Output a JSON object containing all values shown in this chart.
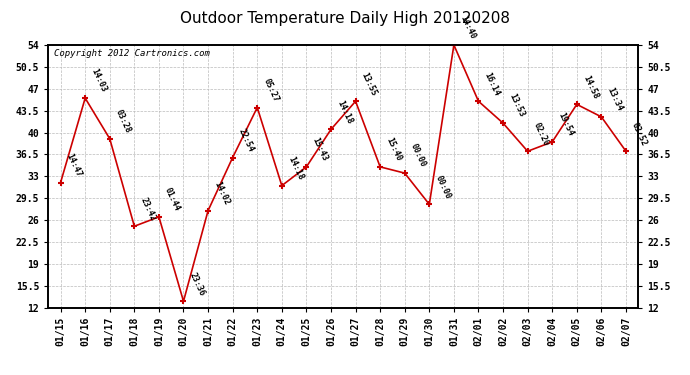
{
  "title": "Outdoor Temperature Daily High 20120208",
  "copyright": "Copyright 2012 Cartronics.com",
  "dates": [
    "01/15",
    "01/16",
    "01/17",
    "01/18",
    "01/19",
    "01/20",
    "01/21",
    "01/22",
    "01/23",
    "01/24",
    "01/25",
    "01/26",
    "01/27",
    "01/28",
    "01/29",
    "01/30",
    "01/31",
    "02/01",
    "02/02",
    "02/03",
    "02/04",
    "02/05",
    "02/06",
    "02/07"
  ],
  "values": [
    32.0,
    45.5,
    39.0,
    25.0,
    26.5,
    13.0,
    27.5,
    36.0,
    44.0,
    31.5,
    34.5,
    40.5,
    45.0,
    34.5,
    33.5,
    28.5,
    54.0,
    45.0,
    41.5,
    37.0,
    38.5,
    44.5,
    42.5,
    37.0
  ],
  "labels": [
    "14:47",
    "14:03",
    "03:28",
    "23:42",
    "01:44",
    "23:36",
    "14:02",
    "22:54",
    "05:27",
    "14:18",
    "15:43",
    "14:18",
    "13:55",
    "15:40",
    "00:00",
    "00:00",
    "14:40",
    "16:14",
    "13:53",
    "02:20",
    "19:54",
    "14:58",
    "13:34",
    "03:52"
  ],
  "line_color": "#cc0000",
  "marker_color": "#cc0000",
  "background_color": "#ffffff",
  "grid_color": "#bbbbbb",
  "ylim_min": 12.0,
  "ylim_max": 54.0,
  "yticks": [
    12.0,
    15.5,
    19.0,
    22.5,
    26.0,
    29.5,
    33.0,
    36.5,
    40.0,
    43.5,
    47.0,
    50.5,
    54.0
  ],
  "title_fontsize": 11,
  "label_fontsize": 6,
  "tick_fontsize": 7,
  "copyright_fontsize": 6.5
}
